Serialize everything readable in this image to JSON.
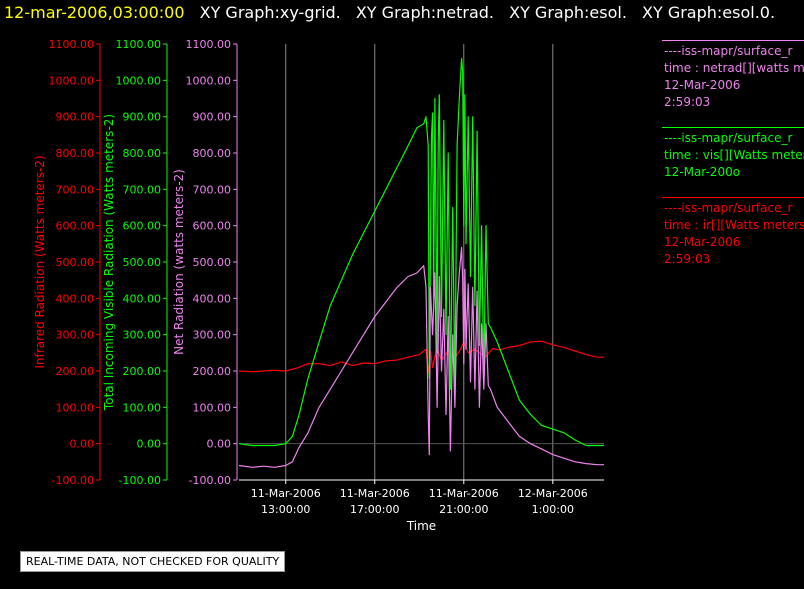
{
  "header": {
    "timestamp": "12-mar-2006,03:00:00",
    "titles": [
      "XY Graph:xy-grid.",
      "XY Graph:netrad.",
      "XY Graph:esol.",
      "XY Graph:esol.0."
    ]
  },
  "colors": {
    "ir": "#ff0000",
    "vis": "#00ff00",
    "net": "#ee82ee",
    "axis_text": "#ffffff",
    "grid": "#888888"
  },
  "legend": [
    {
      "source": "----iss-mapr/surface_r",
      "line1": "time : netrad[][watts me",
      "line2": "12-Mar-2006",
      "line3": "2:59:03",
      "color": "#ee82ee"
    },
    {
      "source": "----iss-mapr/surface_r",
      "line1": "time : vis[][Watts meter",
      "line2": "12-Mar-200o",
      "line3": "",
      "color": "#00ff00"
    },
    {
      "source": "----iss-mapr/surface_r",
      "line1": "time : ir[][Watts meters",
      "line2": "12-Mar-2006",
      "line3": "2:59:03",
      "color": "#ff0000"
    }
  ],
  "footer": {
    "quality_note": "REAL-TIME DATA, NOT CHECKED FOR QUALITY"
  },
  "chart_data": {
    "type": "line",
    "xlabel": "Time",
    "x_ticks": [
      {
        "date": "11-Mar-2006",
        "time": "13:00:00",
        "hour": 13
      },
      {
        "date": "11-Mar-2006",
        "time": "17:00:00",
        "hour": 17
      },
      {
        "date": "11-Mar-2006",
        "time": "21:00:00",
        "hour": 21
      },
      {
        "date": "12-Mar-2006",
        "time": "1:00:00",
        "hour": 25
      }
    ],
    "xlim_hours": [
      10.9,
      27.3
    ],
    "ylim": [
      -100,
      1100
    ],
    "y_ticks": [
      "-100.00",
      "0.00",
      "100.00",
      "200.00",
      "300.00",
      "400.00",
      "500.00",
      "600.00",
      "700.00",
      "800.00",
      "900.00",
      "1000.00",
      "1100.00"
    ],
    "axes": [
      {
        "label": "Infrared Radiation (Watts meters-2)",
        "color": "#ff0000"
      },
      {
        "label": "Total Incoming Visible Radiation (Watts meters-2)",
        "color": "#00ff00"
      },
      {
        "label": "Net Radiation (watts meters-2)",
        "color": "#ee82ee"
      }
    ],
    "series": [
      {
        "name": "time : ir[][Watts meters",
        "color": "#ff0000",
        "points": [
          [
            10.9,
            200
          ],
          [
            11.5,
            198
          ],
          [
            12,
            200
          ],
          [
            12.5,
            202
          ],
          [
            13,
            200
          ],
          [
            13.5,
            208
          ],
          [
            14,
            220
          ],
          [
            14.5,
            220
          ],
          [
            15,
            215
          ],
          [
            15.5,
            225
          ],
          [
            16,
            215
          ],
          [
            16.5,
            222
          ],
          [
            17,
            220
          ],
          [
            17.5,
            228
          ],
          [
            18,
            230
          ],
          [
            18.5,
            238
          ],
          [
            19,
            245
          ],
          [
            19.3,
            260
          ],
          [
            19.4,
            195
          ],
          [
            19.5,
            255
          ],
          [
            19.6,
            210
          ],
          [
            19.7,
            240
          ],
          [
            19.8,
            265
          ],
          [
            19.9,
            245
          ],
          [
            20,
            230
          ],
          [
            20.3,
            255
          ],
          [
            20.6,
            235
          ],
          [
            20.9,
            265
          ],
          [
            21,
            280
          ],
          [
            21.2,
            250
          ],
          [
            21.5,
            260
          ],
          [
            21.8,
            245
          ],
          [
            22,
            240
          ],
          [
            22.3,
            262
          ],
          [
            22.6,
            258
          ],
          [
            23,
            265
          ],
          [
            23.5,
            270
          ],
          [
            24,
            280
          ],
          [
            24.5,
            282
          ],
          [
            25,
            272
          ],
          [
            25.5,
            265
          ],
          [
            26,
            255
          ],
          [
            26.5,
            245
          ],
          [
            27,
            238
          ],
          [
            27.3,
            238
          ]
        ]
      },
      {
        "name": "time : vis[][Watts meter",
        "color": "#00ff00",
        "points": [
          [
            10.9,
            0
          ],
          [
            11.5,
            -5
          ],
          [
            12,
            -5
          ],
          [
            12.5,
            -5
          ],
          [
            13,
            0
          ],
          [
            13.3,
            20
          ],
          [
            13.6,
            80
          ],
          [
            14,
            180
          ],
          [
            14.5,
            280
          ],
          [
            15,
            380
          ],
          [
            15.5,
            450
          ],
          [
            16,
            520
          ],
          [
            16.5,
            580
          ],
          [
            17,
            640
          ],
          [
            17.5,
            700
          ],
          [
            18,
            760
          ],
          [
            18.5,
            820
          ],
          [
            18.9,
            870
          ],
          [
            19.2,
            880
          ],
          [
            19.3,
            900
          ],
          [
            19.4,
            820
          ],
          [
            19.45,
            180
          ],
          [
            19.55,
            850
          ],
          [
            19.6,
            910
          ],
          [
            19.65,
            400
          ],
          [
            19.7,
            950
          ],
          [
            19.8,
            250
          ],
          [
            19.85,
            830
          ],
          [
            19.9,
            960
          ],
          [
            20.0,
            350
          ],
          [
            20.1,
            890
          ],
          [
            20.2,
            300
          ],
          [
            20.3,
            800
          ],
          [
            20.4,
            150
          ],
          [
            20.5,
            650
          ],
          [
            20.6,
            150
          ],
          [
            20.7,
            820
          ],
          [
            20.8,
            950
          ],
          [
            20.9,
            1060
          ],
          [
            20.95,
            1020
          ],
          [
            21.0,
            600
          ],
          [
            21.05,
            960
          ],
          [
            21.1,
            550
          ],
          [
            21.2,
            900
          ],
          [
            21.3,
            460
          ],
          [
            21.4,
            900
          ],
          [
            21.5,
            380
          ],
          [
            21.6,
            860
          ],
          [
            21.7,
            270
          ],
          [
            21.8,
            600
          ],
          [
            21.9,
            180
          ],
          [
            22,
            600
          ],
          [
            22.1,
            330
          ],
          [
            22.2,
            320
          ],
          [
            22.5,
            280
          ],
          [
            23,
            200
          ],
          [
            23.5,
            120
          ],
          [
            24,
            80
          ],
          [
            24.5,
            50
          ],
          [
            25,
            40
          ],
          [
            25.5,
            30
          ],
          [
            26,
            10
          ],
          [
            26.5,
            -5
          ],
          [
            27,
            -5
          ],
          [
            27.3,
            -5
          ]
        ]
      },
      {
        "name": "time : netrad[][watts me",
        "color": "#ee82ee",
        "points": [
          [
            10.9,
            -60
          ],
          [
            11.5,
            -65
          ],
          [
            12,
            -62
          ],
          [
            12.5,
            -65
          ],
          [
            13,
            -60
          ],
          [
            13.3,
            -50
          ],
          [
            13.6,
            -10
          ],
          [
            14,
            30
          ],
          [
            14.5,
            100
          ],
          [
            15,
            150
          ],
          [
            15.5,
            200
          ],
          [
            16,
            250
          ],
          [
            16.5,
            300
          ],
          [
            17,
            350
          ],
          [
            17.5,
            390
          ],
          [
            18,
            430
          ],
          [
            18.5,
            460
          ],
          [
            18.9,
            470
          ],
          [
            19.2,
            490
          ],
          [
            19.3,
            430
          ],
          [
            19.4,
            80
          ],
          [
            19.45,
            -30
          ],
          [
            19.5,
            430
          ],
          [
            19.6,
            300
          ],
          [
            19.7,
            470
          ],
          [
            19.8,
            100
          ],
          [
            19.9,
            460
          ],
          [
            20.0,
            200
          ],
          [
            20.1,
            370
          ],
          [
            20.2,
            80
          ],
          [
            20.3,
            350
          ],
          [
            20.4,
            -20
          ],
          [
            20.5,
            300
          ],
          [
            20.6,
            100
          ],
          [
            20.7,
            380
          ],
          [
            20.8,
            470
          ],
          [
            20.9,
            540
          ],
          [
            20.95,
            450
          ],
          [
            21.0,
            220
          ],
          [
            21.05,
            480
          ],
          [
            21.1,
            260
          ],
          [
            21.2,
            440
          ],
          [
            21.3,
            170
          ],
          [
            21.4,
            430
          ],
          [
            21.5,
            150
          ],
          [
            21.6,
            420
          ],
          [
            21.7,
            100
          ],
          [
            21.8,
            330
          ],
          [
            21.9,
            150
          ],
          [
            22,
            330
          ],
          [
            22.1,
            160
          ],
          [
            22.2,
            150
          ],
          [
            22.5,
            100
          ],
          [
            23,
            60
          ],
          [
            23.5,
            20
          ],
          [
            24,
            0
          ],
          [
            24.5,
            -15
          ],
          [
            25,
            -30
          ],
          [
            25.5,
            -40
          ],
          [
            26,
            -50
          ],
          [
            26.5,
            -55
          ],
          [
            27,
            -58
          ],
          [
            27.3,
            -58
          ]
        ]
      }
    ]
  }
}
